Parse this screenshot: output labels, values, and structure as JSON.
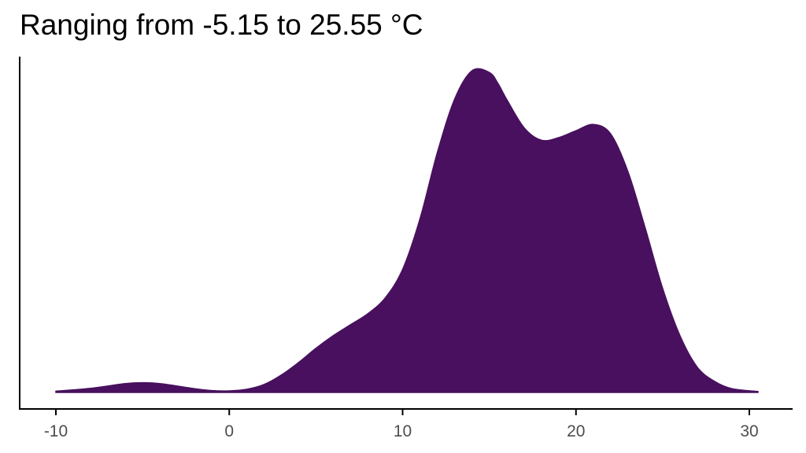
{
  "chart_data": {
    "type": "area",
    "subtype": "density",
    "title": "Ranging from -5.15 to 25.55 °C",
    "xlabel": "",
    "ylabel": "",
    "xlim": [
      -12,
      32.5
    ],
    "ylim": [
      0,
      1.05
    ],
    "x_ticks": [
      -10,
      0,
      10,
      20,
      30
    ],
    "x_tick_labels": [
      "-10",
      "0",
      "10",
      "20",
      "30"
    ],
    "y_axis_ticks": false,
    "grid": false,
    "legend": "none",
    "fill_color": "#48105E",
    "axis_color": "#000000",
    "tick_label_color": "#4d4d4d",
    "x": [
      -10,
      -8,
      -6,
      -5,
      -4,
      -2,
      -1,
      0,
      1,
      2,
      3,
      4,
      5,
      6,
      7,
      8,
      9,
      10,
      11,
      12,
      13,
      14,
      15,
      15.5,
      16,
      17,
      18,
      19,
      20,
      21,
      22,
      23,
      24,
      25,
      26,
      27,
      28,
      29,
      30.5
    ],
    "y": [
      0.004,
      0.013,
      0.028,
      0.031,
      0.028,
      0.012,
      0.006,
      0.005,
      0.01,
      0.025,
      0.055,
      0.095,
      0.14,
      0.18,
      0.215,
      0.25,
      0.3,
      0.39,
      0.55,
      0.76,
      0.93,
      1.02,
      1.015,
      0.98,
      0.93,
      0.84,
      0.8,
      0.808,
      0.83,
      0.85,
      0.82,
      0.7,
      0.52,
      0.33,
      0.18,
      0.08,
      0.035,
      0.012,
      0.003
    ]
  }
}
